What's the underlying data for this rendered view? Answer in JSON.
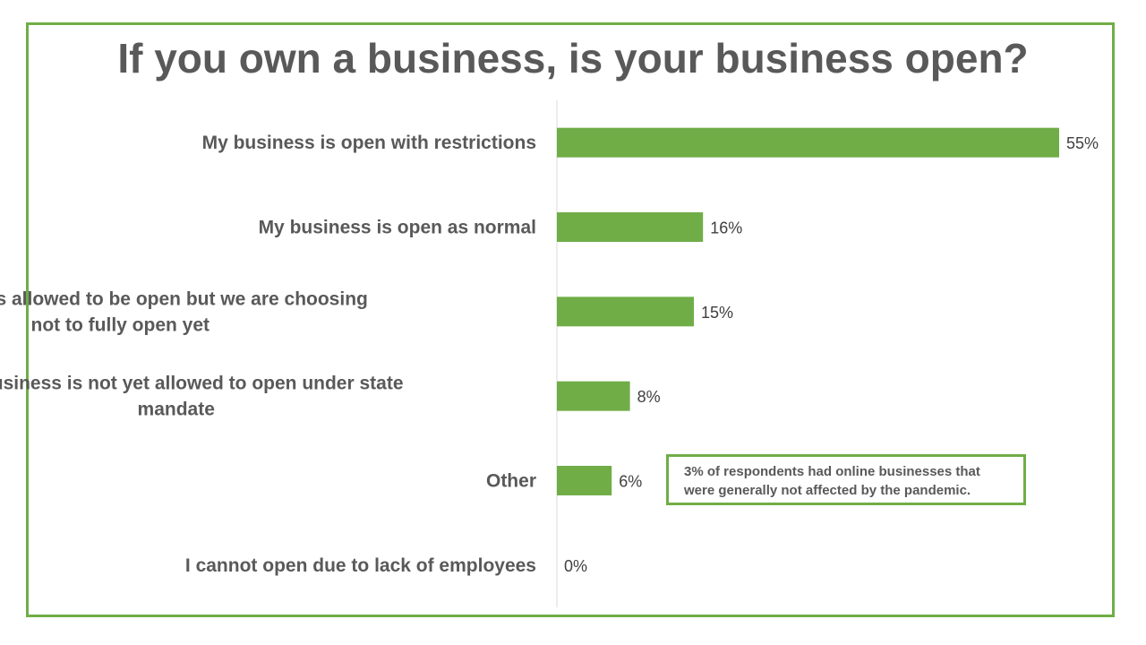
{
  "title": "If you own a business, is your business open?",
  "note": "3% of respondents had online businesses that were generally not affected by the pandemic.",
  "colors": {
    "bar": "#70ad47",
    "frame": "#70ad47",
    "text": "#595959",
    "axis": "#d9d9d9"
  },
  "chart_data": {
    "type": "bar",
    "orientation": "horizontal",
    "categories": [
      [
        "My business is open with restrictions"
      ],
      [
        "My business is open as normal"
      ],
      [
        "My business is allowed to be open but we are choosing",
        "not to fully open yet"
      ],
      [
        "My business is not yet allowed to open under state",
        "mandate"
      ],
      [
        "Other"
      ],
      [
        "I cannot open due to lack of employees"
      ]
    ],
    "values": [
      55,
      16,
      15,
      8,
      6,
      0
    ],
    "value_labels": [
      "55%",
      "16%",
      "15%",
      "8%",
      "6%",
      "0%"
    ],
    "xlim": [
      0,
      55
    ],
    "grid": false,
    "legend": "none"
  }
}
